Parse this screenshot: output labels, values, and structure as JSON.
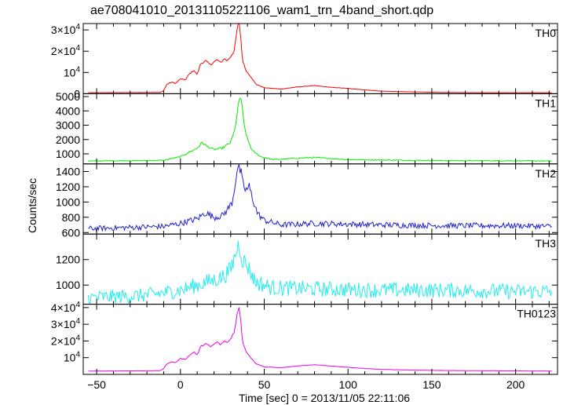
{
  "title": "ae708041010_20131105221106_wam1_trn_4band_short.qdp",
  "xlabel": "Time [sec] 0 = 2013/11/05 22:11:06",
  "ylabel": "Counts/sec",
  "chart_data": {
    "type": "line",
    "title": "ae708041010_20131105221106_wam1_trn_4band_short.qdp",
    "xlabel": "Time [sec] 0 = 2013/11/05 22:11:06",
    "ylabel": "Counts/sec",
    "xlim": [
      -58,
      225
    ],
    "x_ticks": [
      -50,
      0,
      50,
      100,
      150,
      200
    ],
    "x_tick_labels": [
      "−50",
      "0",
      "50",
      "100",
      "150",
      "200"
    ],
    "panels": [
      {
        "name": "TH0",
        "color": "#ff0000",
        "ylim": [
          0,
          33000
        ],
        "y_ticks": [
          0,
          10000,
          20000,
          30000
        ],
        "y_tick_labels": [
          {
            "mantissa": "0",
            "exp": ""
          },
          {
            "mantissa": "10",
            "exp": "4"
          },
          {
            "mantissa": "2×10",
            "exp": "4"
          },
          {
            "mantissa": "3×10",
            "exp": "4"
          }
        ],
        "noise": 0.015,
        "points": [
          [
            -55,
            500
          ],
          [
            -12,
            600
          ],
          [
            -10,
            1500
          ],
          [
            -8,
            4500
          ],
          [
            -5,
            5500
          ],
          [
            -3,
            4800
          ],
          [
            0,
            7000
          ],
          [
            3,
            6500
          ],
          [
            5,
            9000
          ],
          [
            8,
            11000
          ],
          [
            10,
            9000
          ],
          [
            12,
            14000
          ],
          [
            15,
            15500
          ],
          [
            18,
            13500
          ],
          [
            20,
            15000
          ],
          [
            22,
            16000
          ],
          [
            24,
            14500
          ],
          [
            26,
            16500
          ],
          [
            28,
            15500
          ],
          [
            30,
            17500
          ],
          [
            32,
            20000
          ],
          [
            33,
            25000
          ],
          [
            34,
            31500
          ],
          [
            35,
            33000
          ],
          [
            36,
            27000
          ],
          [
            37,
            16000
          ],
          [
            39,
            11000
          ],
          [
            42,
            8000
          ],
          [
            45,
            4500
          ],
          [
            50,
            2800
          ],
          [
            60,
            2200
          ],
          [
            70,
            3200
          ],
          [
            80,
            3800
          ],
          [
            90,
            3000
          ],
          [
            100,
            2500
          ],
          [
            110,
            1800
          ],
          [
            120,
            1200
          ],
          [
            140,
            800
          ],
          [
            160,
            600
          ],
          [
            180,
            500
          ],
          [
            200,
            500
          ],
          [
            222,
            500
          ]
        ]
      },
      {
        "name": "TH1",
        "color": "#00ee00",
        "ylim": [
          300,
          5200
        ],
        "y_ticks": [
          1000,
          2000,
          3000,
          4000,
          5000
        ],
        "y_tick_labels": [
          {
            "mantissa": "1000",
            "exp": ""
          },
          {
            "mantissa": "2000",
            "exp": ""
          },
          {
            "mantissa": "3000",
            "exp": ""
          },
          {
            "mantissa": "4000",
            "exp": ""
          },
          {
            "mantissa": "5000",
            "exp": ""
          }
        ],
        "noise": 0.03,
        "points": [
          [
            -55,
            500
          ],
          [
            -10,
            550
          ],
          [
            0,
            800
          ],
          [
            5,
            1100
          ],
          [
            10,
            1400
          ],
          [
            13,
            1800
          ],
          [
            16,
            1500
          ],
          [
            20,
            1300
          ],
          [
            25,
            1400
          ],
          [
            30,
            1800
          ],
          [
            32,
            2500
          ],
          [
            34,
            3800
          ],
          [
            35,
            4700
          ],
          [
            36,
            5100
          ],
          [
            37,
            4000
          ],
          [
            38,
            3000
          ],
          [
            40,
            2000
          ],
          [
            43,
            1200
          ],
          [
            48,
            800
          ],
          [
            55,
            600
          ],
          [
            70,
            700
          ],
          [
            80,
            750
          ],
          [
            100,
            600
          ],
          [
            130,
            560
          ],
          [
            160,
            530
          ],
          [
            200,
            520
          ],
          [
            222,
            500
          ]
        ]
      },
      {
        "name": "TH2",
        "color": "#2222cc",
        "ylim": [
          580,
          1500
        ],
        "y_ticks": [
          600,
          800,
          1000,
          1200,
          1400
        ],
        "y_tick_labels": [
          {
            "mantissa": "600",
            "exp": ""
          },
          {
            "mantissa": "800",
            "exp": ""
          },
          {
            "mantissa": "1000",
            "exp": ""
          },
          {
            "mantissa": "1200",
            "exp": ""
          },
          {
            "mantissa": "1400",
            "exp": ""
          }
        ],
        "noise": 0.03,
        "points": [
          [
            -55,
            650
          ],
          [
            -10,
            680
          ],
          [
            0,
            720
          ],
          [
            10,
            780
          ],
          [
            15,
            860
          ],
          [
            20,
            800
          ],
          [
            25,
            820
          ],
          [
            28,
            900
          ],
          [
            31,
            1000
          ],
          [
            33,
            1300
          ],
          [
            34,
            1450
          ],
          [
            36,
            1400
          ],
          [
            37,
            1250
          ],
          [
            39,
            1150
          ],
          [
            41,
            1200
          ],
          [
            43,
            1050
          ],
          [
            46,
            850
          ],
          [
            50,
            760
          ],
          [
            60,
            700
          ],
          [
            80,
            720
          ],
          [
            120,
            700
          ],
          [
            160,
            690
          ],
          [
            200,
            690
          ],
          [
            222,
            680
          ]
        ]
      },
      {
        "name": "TH3",
        "color": "#22eeee",
        "ylim": [
          850,
          1400
        ],
        "y_ticks": [
          1000,
          1200
        ],
        "y_tick_labels": [
          {
            "mantissa": "1000",
            "exp": ""
          },
          {
            "mantissa": "1200",
            "exp": ""
          }
        ],
        "noise": 0.035,
        "points": [
          [
            -55,
            900
          ],
          [
            -20,
            920
          ],
          [
            0,
            960
          ],
          [
            15,
            1020
          ],
          [
            25,
            1060
          ],
          [
            30,
            1120
          ],
          [
            33,
            1250
          ],
          [
            35,
            1330
          ],
          [
            37,
            1200
          ],
          [
            40,
            1150
          ],
          [
            45,
            1020
          ],
          [
            55,
            980
          ],
          [
            80,
            970
          ],
          [
            120,
            960
          ],
          [
            160,
            960
          ],
          [
            200,
            950
          ],
          [
            222,
            950
          ]
        ]
      },
      {
        "name": "TH0123",
        "color": "#ee00ee",
        "ylim": [
          0,
          42000
        ],
        "y_ticks": [
          10000,
          20000,
          30000,
          40000
        ],
        "y_tick_labels": [
          {
            "mantissa": "10",
            "exp": "4"
          },
          {
            "mantissa": "2×10",
            "exp": "4"
          },
          {
            "mantissa": "3×10",
            "exp": "4"
          },
          {
            "mantissa": "4×10",
            "exp": "4"
          }
        ],
        "noise": 0.012,
        "points": [
          [
            -55,
            2000
          ],
          [
            -12,
            2200
          ],
          [
            -10,
            3500
          ],
          [
            -8,
            6500
          ],
          [
            -5,
            7500
          ],
          [
            -3,
            7000
          ],
          [
            0,
            9500
          ],
          [
            3,
            9000
          ],
          [
            5,
            11000
          ],
          [
            8,
            13500
          ],
          [
            10,
            11500
          ],
          [
            12,
            16500
          ],
          [
            15,
            18500
          ],
          [
            18,
            16500
          ],
          [
            20,
            18000
          ],
          [
            22,
            19500
          ],
          [
            24,
            17500
          ],
          [
            26,
            20000
          ],
          [
            28,
            19000
          ],
          [
            30,
            21500
          ],
          [
            32,
            25000
          ],
          [
            33,
            30000
          ],
          [
            34,
            38000
          ],
          [
            35,
            40000
          ],
          [
            36,
            33000
          ],
          [
            37,
            20000
          ],
          [
            39,
            14000
          ],
          [
            42,
            10000
          ],
          [
            45,
            6500
          ],
          [
            50,
            4500
          ],
          [
            60,
            4000
          ],
          [
            70,
            5000
          ],
          [
            80,
            5800
          ],
          [
            90,
            5000
          ],
          [
            100,
            4200
          ],
          [
            110,
            3500
          ],
          [
            120,
            3000
          ],
          [
            140,
            2500
          ],
          [
            160,
            2300
          ],
          [
            180,
            2200
          ],
          [
            200,
            2100
          ],
          [
            222,
            2000
          ]
        ]
      }
    ]
  }
}
